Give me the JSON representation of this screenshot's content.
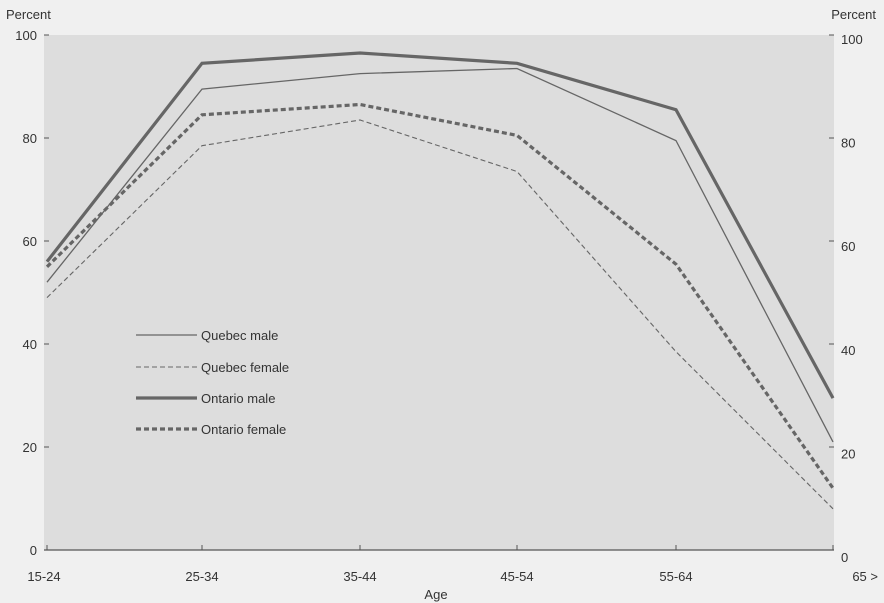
{
  "chart_data": {
    "type": "line",
    "xlabel": "Age",
    "ylabel_left": "Percent",
    "ylabel_right": "Percent",
    "categories": [
      "15-24",
      "25-34",
      "35-44",
      "45-54",
      "55-64",
      "65 >"
    ],
    "ylim": [
      0,
      100
    ],
    "yticks": [
      "0",
      "20",
      "40",
      "60",
      "80",
      "100"
    ],
    "grid": false,
    "legend_position": "center-left",
    "colors": {
      "plot_background": "#dddddd",
      "page_background": "#f0f0f0",
      "line": "#666666"
    },
    "series": [
      {
        "name": "Quebec male",
        "values": [
          52,
          89.5,
          92.5,
          93.5,
          79.5,
          21
        ],
        "style": "solid-thin"
      },
      {
        "name": "Quebec female",
        "values": [
          49,
          78.5,
          83.5,
          73.5,
          38.5,
          8
        ],
        "style": "dashed-thin"
      },
      {
        "name": "Ontario male",
        "values": [
          56,
          94.5,
          96.5,
          94.5,
          85.5,
          29.5
        ],
        "style": "solid-thick"
      },
      {
        "name": "Ontario female",
        "values": [
          55,
          84.5,
          86.5,
          80.5,
          55.5,
          12
        ],
        "style": "dashed-thick"
      }
    ]
  }
}
